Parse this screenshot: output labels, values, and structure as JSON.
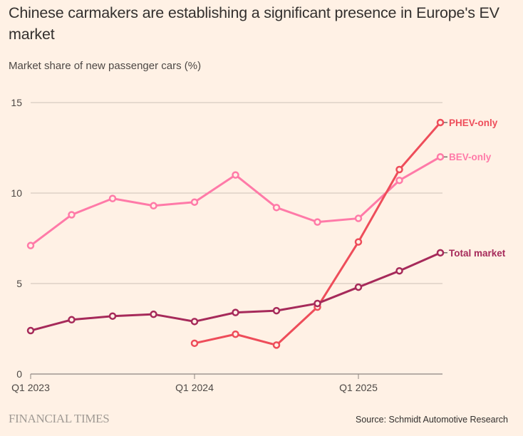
{
  "header": {
    "title": "Chinese carmakers are establishing a significant presence in Europe's EV market",
    "subtitle": "Market share of new passenger cars (%)"
  },
  "footer": {
    "logo": "FINANCIAL TIMES",
    "source": "Source: Schmidt Automotive Research"
  },
  "chart_data": {
    "type": "line",
    "title": "Chinese carmakers are establishing a significant presence in Europe's EV market",
    "subtitle": "Market share of new passenger cars (%)",
    "xlabel": "",
    "ylabel": "Market share of new passenger cars (%)",
    "x": [
      "Q1 2023",
      "Q2 2023",
      "Q3 2023",
      "Q4 2023",
      "Q1 2024",
      "Q2 2024",
      "Q3 2024",
      "Q4 2024",
      "Q1 2025",
      "Q2 2025",
      "Q3 2025"
    ],
    "x_tick_labels": [
      {
        "index": 0,
        "label": "Q1 2023"
      },
      {
        "index": 4,
        "label": "Q1 2024"
      },
      {
        "index": 8,
        "label": "Q1 2025"
      }
    ],
    "ylim": [
      0,
      15
    ],
    "y_ticks": [
      0,
      5,
      10,
      15
    ],
    "grid": true,
    "legend": "direct labels at line ends (right)",
    "series": [
      {
        "name": "BEV-only",
        "color": "#ff7aa8",
        "values": [
          7.1,
          8.8,
          9.7,
          9.3,
          9.5,
          11.0,
          9.2,
          8.4,
          8.6,
          10.7,
          12.0
        ]
      },
      {
        "name": "PHEV-only",
        "color": "#ee4d5a",
        "values": [
          null,
          null,
          null,
          null,
          1.7,
          2.2,
          1.6,
          3.7,
          7.3,
          11.3,
          13.9
        ]
      },
      {
        "name": "Total market",
        "color": "#a62a5a",
        "values": [
          2.4,
          3.0,
          3.2,
          3.3,
          2.9,
          3.4,
          3.5,
          3.9,
          4.8,
          5.7,
          6.7
        ]
      }
    ]
  }
}
